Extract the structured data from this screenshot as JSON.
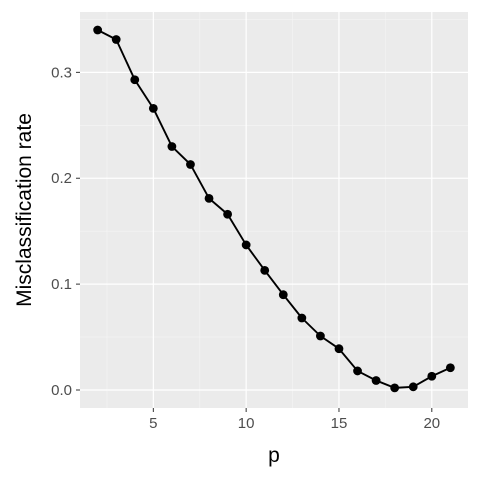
{
  "chart_data": {
    "type": "line",
    "title": "",
    "xlabel": "p",
    "ylabel": "Misclassification rate",
    "x": [
      2,
      3,
      4,
      5,
      6,
      7,
      8,
      9,
      10,
      11,
      12,
      13,
      14,
      15,
      16,
      17,
      18,
      19,
      20,
      21
    ],
    "series": [
      {
        "values": [
          0.34,
          0.331,
          0.293,
          0.266,
          0.23,
          0.213,
          0.181,
          0.166,
          0.137,
          0.113,
          0.09,
          0.068,
          0.051,
          0.039,
          0.018,
          0.009,
          0.002,
          0.003,
          0.013,
          0.021
        ]
      }
    ],
    "xlim": [
      1.05,
      21.95
    ],
    "ylim": [
      -0.017,
      0.357
    ],
    "xticks": [
      5,
      10,
      15,
      20
    ],
    "xtick_labels": [
      "5",
      "10",
      "15",
      "20"
    ],
    "yticks": [
      0.0,
      0.1,
      0.2,
      0.3
    ],
    "ytick_labels": [
      "0.0",
      "0.1",
      "0.2",
      "0.3"
    ],
    "grid": true,
    "legend": "none",
    "colors": {
      "panel_background": "#ebebeb",
      "grid_major": "#ffffff",
      "grid_minor": "#f5f5f5",
      "line": "#000000",
      "points": "#000000",
      "tick_text": "#4d4d4d",
      "axis_title": "#000000",
      "tick_mark": "#333333"
    }
  }
}
